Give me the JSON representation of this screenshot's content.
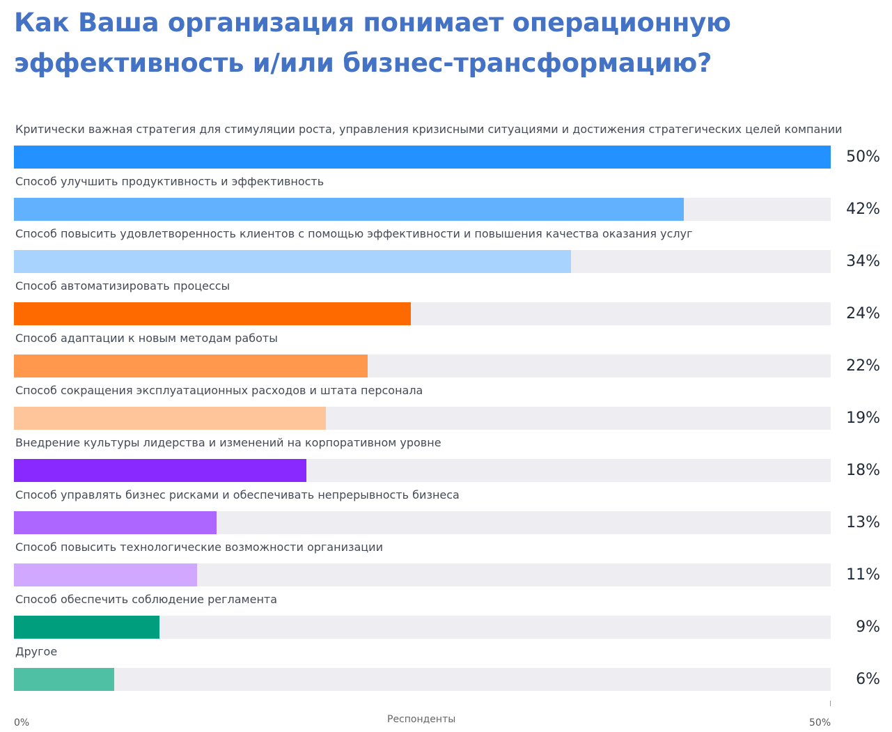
{
  "title_lines": [
    "Как Ваша организация понимает операционную",
    "эффективность и/или бизнес-трансформацию?"
  ],
  "chart_data": {
    "type": "bar",
    "orientation": "horizontal",
    "title": "Как Ваша организация понимает операционную эффективность и/или бизнес-трансформацию?",
    "xlabel": "Респонденты",
    "xlim": [
      0,
      50
    ],
    "x_tick_labels": [
      "0%",
      "50%"
    ],
    "categories": [
      "Критически важная стратегия для стимуляции роста, управления кризисными ситуациями и достижения стратегических целей компании",
      "Способ улучшить продуктивность и эффективность",
      "Способ повысить удовлетворенность клиентов с помощью эффективности и повышения качества оказания услуг",
      "Способ автоматизировать процессы",
      "Способ адаптации к новым методам работы",
      "Способ сокращения эксплуатационных расходов и штата персонала",
      "Внедрение культуры лидерства и изменений на корпоративном уровне",
      "Способ управлять бизнес рисками и обеспечивать непрерывность бизнеса",
      "Способ повысить технологические возможности организации",
      "Способ обеспечить соблюдение регламента",
      "Другое"
    ],
    "values": [
      50,
      42,
      34,
      24,
      22,
      19,
      18,
      13,
      11,
      9,
      6
    ],
    "value_labels": [
      "50%",
      "42%",
      "34%",
      "24%",
      "22%",
      "19%",
      "18%",
      "13%",
      "11%",
      "9%",
      "6%"
    ],
    "fractions": [
      1.0,
      0.82,
      0.682,
      0.486,
      0.433,
      0.382,
      0.358,
      0.248,
      0.224,
      0.178,
      0.123
    ],
    "colors": [
      "#2391ff",
      "#62b1ff",
      "#a8d3ff",
      "#ff6a00",
      "#ff974d",
      "#ffc59a",
      "#8a29ff",
      "#ad66ff",
      "#d0a8ff",
      "#009e7c",
      "#4fc0a3"
    ],
    "track_color": "#ededf2",
    "grid": false,
    "legend": "none"
  }
}
